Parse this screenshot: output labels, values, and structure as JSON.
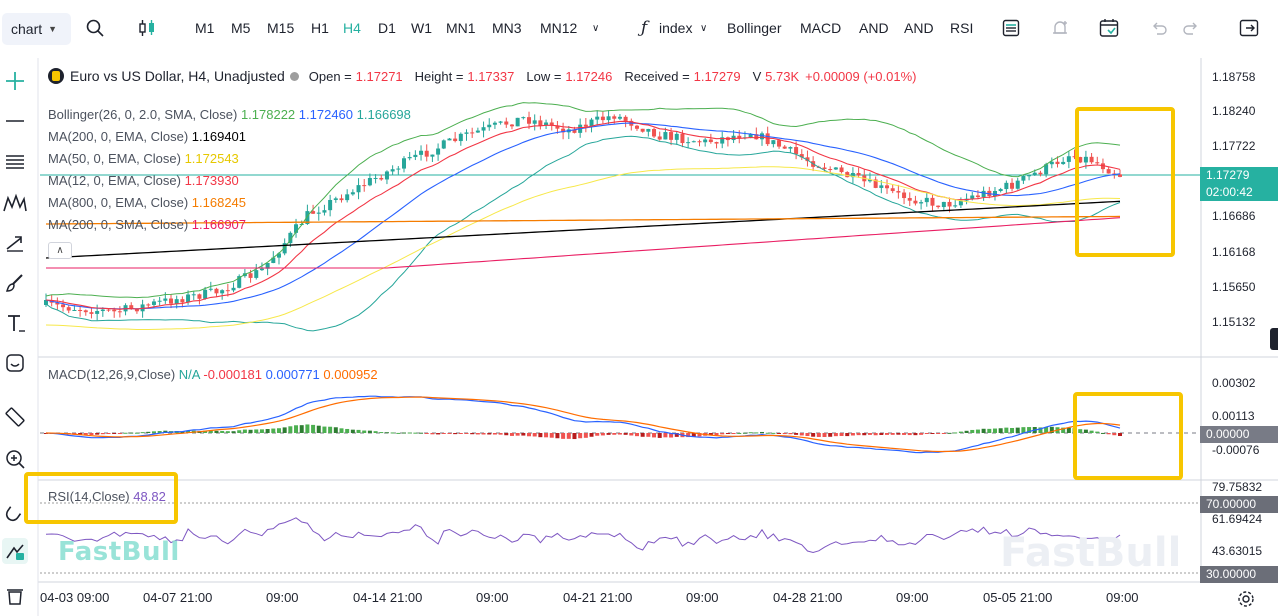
{
  "toolbar": {
    "symbol_button": "chart",
    "timeframes": [
      "M1",
      "M5",
      "M15",
      "H1",
      "H4",
      "D1",
      "W1",
      "MN1",
      "MN3",
      "MN12"
    ],
    "active_timeframe": "H4",
    "indicator_button": "index",
    "indicators": [
      "Bollinger",
      "MACD",
      "AND",
      "AND",
      "RSI"
    ]
  },
  "legend": {
    "title": "Euro vs US Dollar, H4, Unadjusted",
    "open_label": "Open =",
    "open_value": "1.17271",
    "high_label": "Height =",
    "high_value": "1.17337",
    "low_label": "Low =",
    "low_value": "1.17246",
    "close_label": "Received =",
    "close_value": "1.17279",
    "volume_label": "V",
    "volume_value": "5.73K",
    "change_value": "+0.00009 (+0.01%)",
    "bollinger_label": "Bollinger(26, 0, 2.0, SMA, Close)",
    "bollinger_values": [
      "1.178222",
      "1.172460",
      "1.166698"
    ],
    "ma200_ema_label": "MA(200, 0, EMA, Close)",
    "ma200_ema_value": "1.169401",
    "ma50_label": "MA(50, 0, EMA, Close)",
    "ma50_value": "1.172543",
    "ma12_label": "MA(12, 0, EMA, Close)",
    "ma12_value": "1.173930",
    "ma800_label": "MA(800, 0, EMA, Close)",
    "ma800_value": "1.168245",
    "ma200_sma_label": "MA(200, 0, SMA, Close)",
    "ma200_sma_value": "1.166907"
  },
  "macd_legend": {
    "label": "MACD(12,26,9,Close)",
    "values": [
      "N/A",
      "-0.000181",
      "0.000771",
      "0.000952"
    ]
  },
  "rsi_legend": {
    "label": "RSI(14,Close)",
    "value": "48.82"
  },
  "price_axis": [
    "1.18758",
    "1.18240",
    "1.17722",
    "1.16686",
    "1.16168",
    "1.15650",
    "1.15132"
  ],
  "current_price": {
    "value": "1.17279",
    "countdown": "02:00:42"
  },
  "macd_axis": [
    "0.00302",
    "0.00113",
    "0.00000",
    "-0.00076"
  ],
  "rsi_axis": [
    "79.75832",
    "70.00000",
    "61.69424",
    "43.63015",
    "30.00000"
  ],
  "time_axis": [
    "04-03 09:00",
    "04-07 21:00",
    "09:00",
    "04-14 21:00",
    "09:00",
    "04-21 21:00",
    "09:00",
    "04-28 21:00",
    "09:00",
    "05-05 21:00",
    "09:00"
  ],
  "watermark": "FastBull",
  "colors": {
    "up": "#26a69a",
    "down": "#ef5350",
    "accent": "#26b1a1",
    "bollinger": "#4caf50",
    "ma12": "#f23645",
    "ma50": "#f7e84a",
    "ma200ema": "#000000",
    "ma800": "#f57c00",
    "ma200sma": "#e91e63",
    "macd": "#2962ff",
    "signal": "#ff6d00",
    "rsi": "#7e57c2",
    "highlight": "#f7c600"
  }
}
